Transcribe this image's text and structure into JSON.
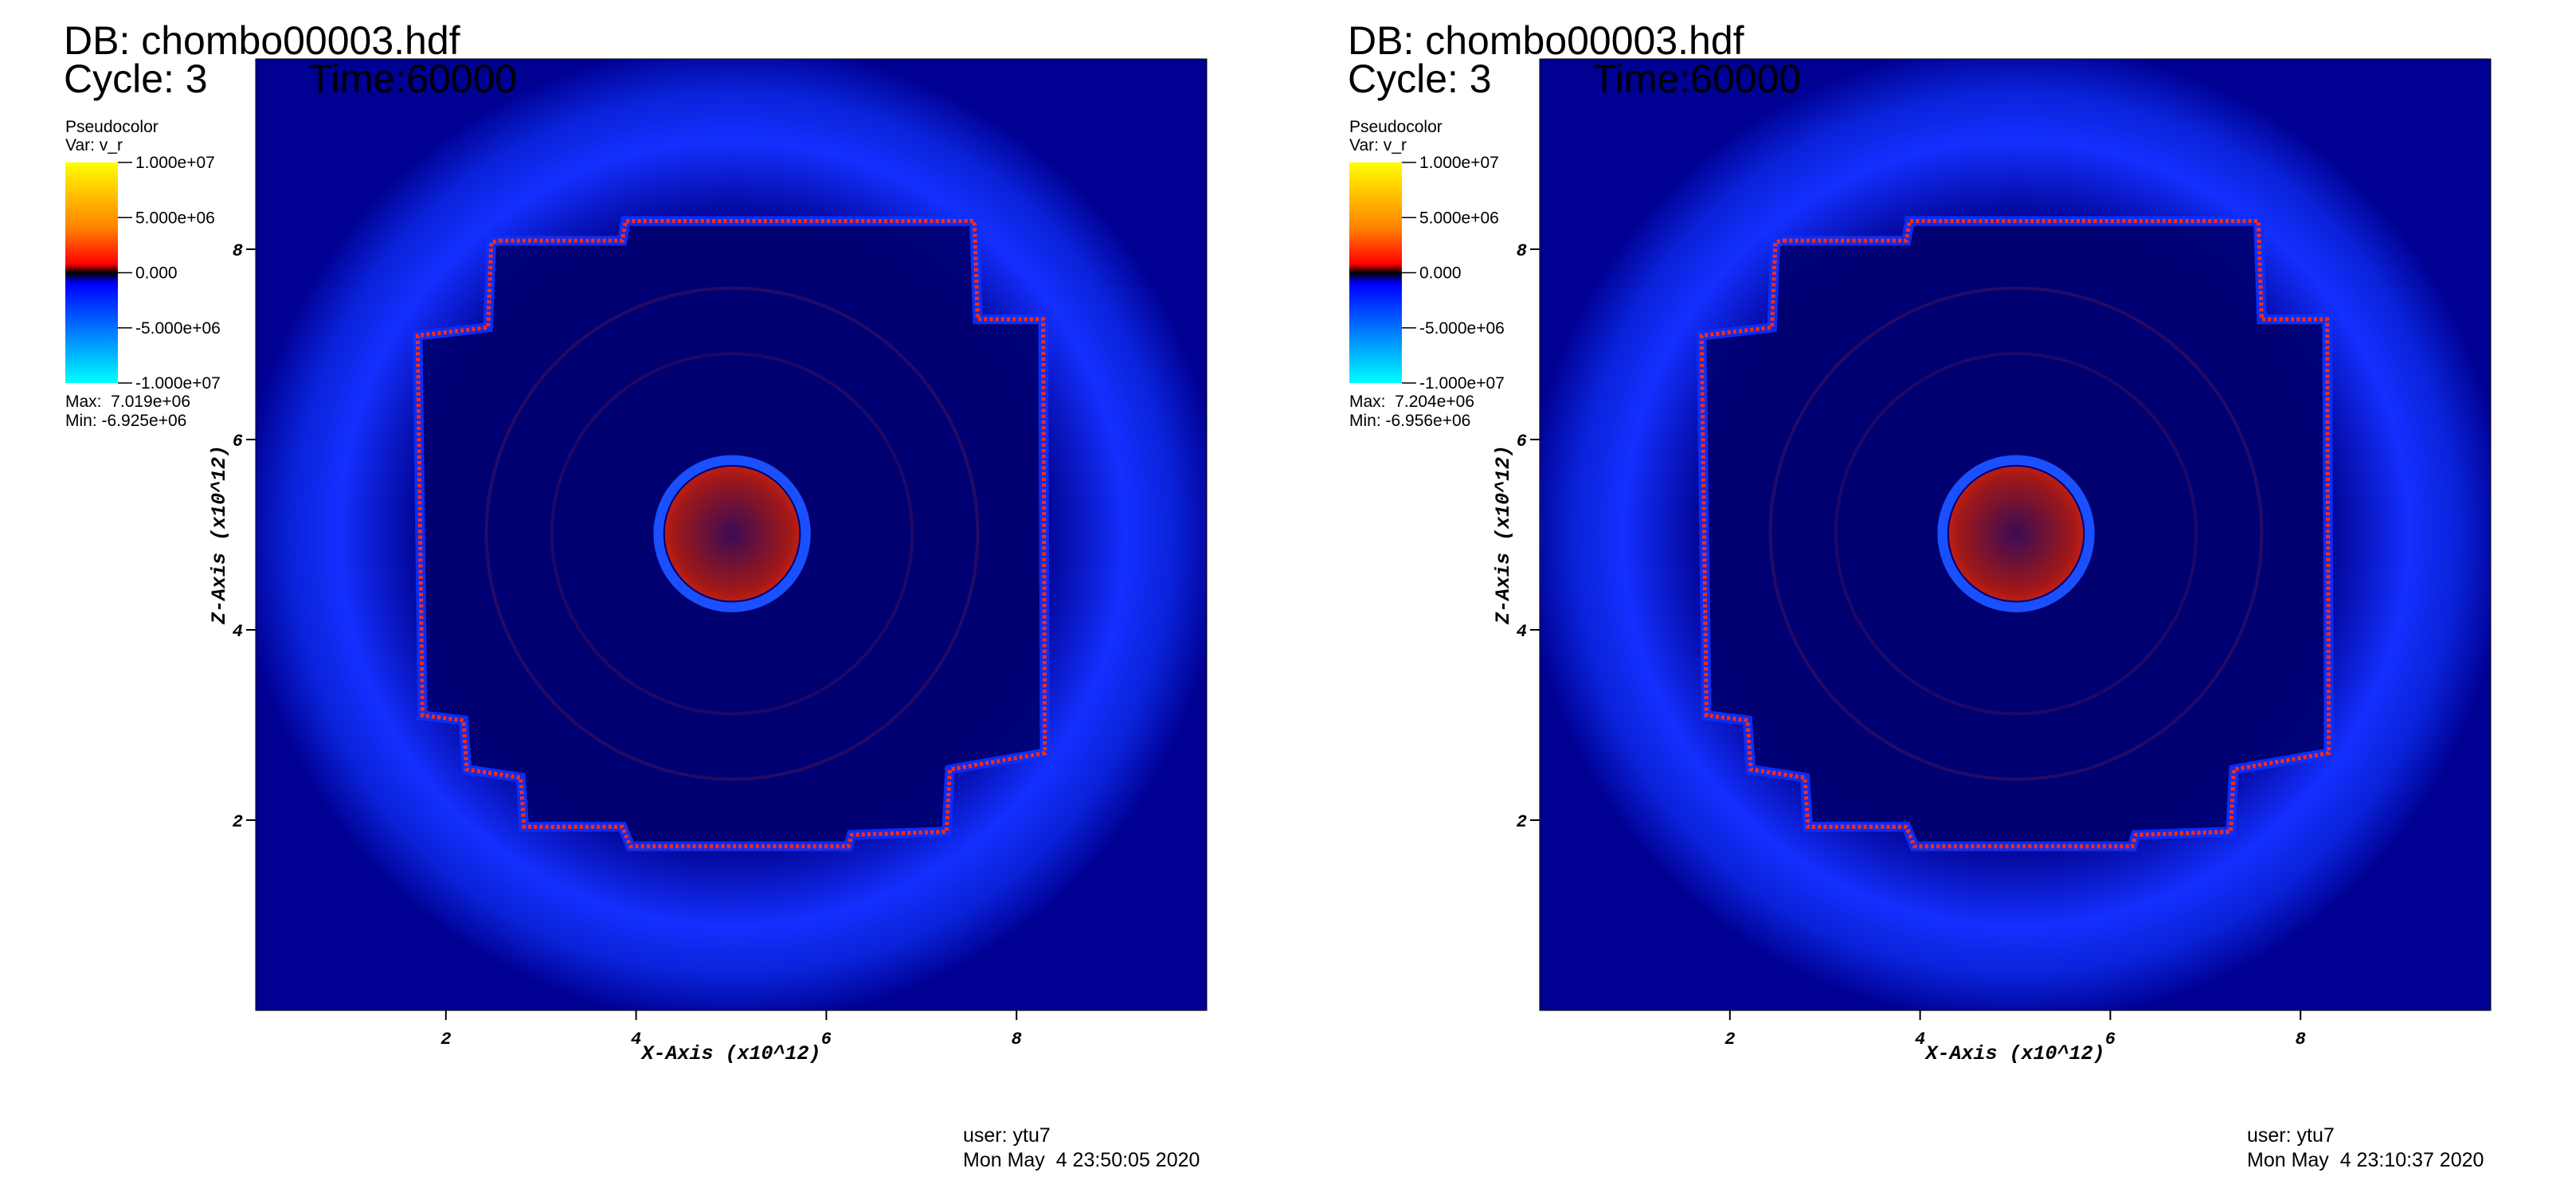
{
  "panels": [
    {
      "db": "DB: chombo00003.hdf",
      "cycle": "Cycle: 3",
      "time": "Time:60000",
      "legend": {
        "plot": "Pseudocolor",
        "var": "Var: v_r",
        "ticks": [
          {
            "value": 10000000,
            "label": "1.000e+07"
          },
          {
            "value": 5000000,
            "label": "5.000e+06"
          },
          {
            "value": 0,
            "label": "0.000"
          },
          {
            "value": -5000000,
            "label": "-5.000e+06"
          },
          {
            "value": -10000000,
            "label": "-1.000e+07"
          }
        ],
        "max": "Max:  7.019e+06",
        "min": "Min: -6.925e+06"
      },
      "x_axis": {
        "label": "X-Axis (x10^12)",
        "lim": [
          0,
          10
        ],
        "ticks": [
          2,
          4,
          6,
          8
        ]
      },
      "z_axis": {
        "label": "Z-Axis (x10^12)",
        "lim": [
          0,
          10
        ],
        "ticks": [
          2,
          4,
          6,
          8
        ]
      },
      "user": "user: ytu7",
      "date": "Mon May  4 23:50:05 2020"
    },
    {
      "db": "DB: chombo00003.hdf",
      "cycle": "Cycle: 3",
      "time": "Time:60000",
      "legend": {
        "plot": "Pseudocolor",
        "var": "Var: v_r",
        "ticks": [
          {
            "value": 10000000,
            "label": "1.000e+07"
          },
          {
            "value": 5000000,
            "label": "5.000e+06"
          },
          {
            "value": 0,
            "label": "0.000"
          },
          {
            "value": -5000000,
            "label": "-5.000e+06"
          },
          {
            "value": -10000000,
            "label": "-1.000e+07"
          }
        ],
        "max": "Max:  7.204e+06",
        "min": "Min: -6.956e+06"
      },
      "x_axis": {
        "label": "X-Axis (x10^12)",
        "lim": [
          0,
          10
        ],
        "ticks": [
          2,
          4,
          6,
          8
        ]
      },
      "z_axis": {
        "label": "Z-Axis (x10^12)",
        "lim": [
          0,
          10
        ],
        "ticks": [
          2,
          4,
          6,
          8
        ]
      },
      "user": "user: ytu7",
      "date": "Mon May  4 23:10:37 2020"
    }
  ]
}
